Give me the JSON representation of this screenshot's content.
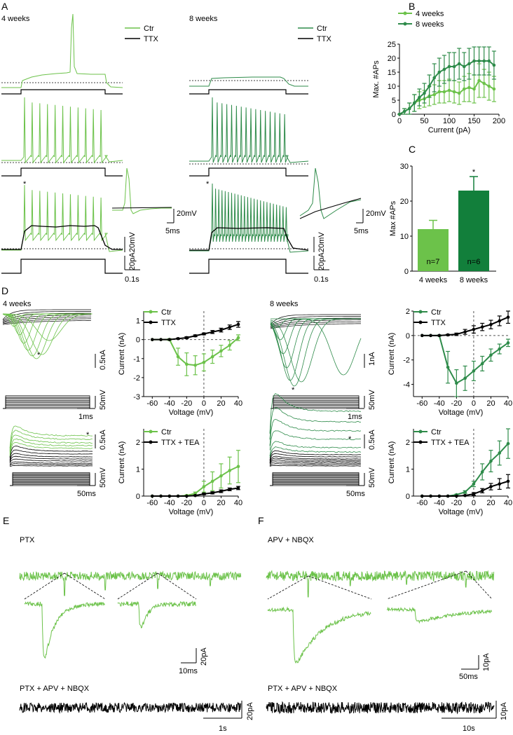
{
  "panel_labels": {
    "a": "A",
    "b": "B",
    "c": "C",
    "d": "D",
    "e": "E",
    "f": "F"
  },
  "colors": {
    "light_green": "#6cc24a",
    "dark_green": "#2e8b4a",
    "black": "#000000"
  },
  "panel_a": {
    "group_4w": "4 weeks",
    "group_8w": "8 weeks",
    "legend_ctr": "Ctr",
    "legend_ttx": "TTX",
    "star": "*",
    "scale_20mv_inset": "20mV",
    "scale_5ms": "5ms",
    "scale_20mv": "20mV",
    "scale_20pa": "20pA",
    "scale_01s": "0.1s"
  },
  "panel_d": {
    "group_4w": "4 weeks",
    "group_8w": "8 weeks",
    "legend_ctr": "Ctr",
    "legend_ttx": "TTX",
    "legend_ttx_tea": "TTX + TEA",
    "star": "*",
    "scale_05na": "0.5nA",
    "scale_1na": "1nA",
    "scale_50mv": "50mV",
    "scale_1ms": "1ms",
    "scale_50ms": "50ms"
  },
  "panel_e": {
    "cond_1": "PTX",
    "cond_2": "PTX + APV + NBQX",
    "scale_20pa": "20pA",
    "scale_10ms": "10ms",
    "scale_1s": "1s"
  },
  "panel_f": {
    "cond_1": "APV + NBQX",
    "cond_2": "PTX + APV + NBQX",
    "scale_10pa": "10pA",
    "scale_50ms": "50ms",
    "scale_10s": "10s"
  },
  "chart_data": [
    {
      "id": "B",
      "type": "line",
      "xlabel": "Current (pA)",
      "ylabel": "Max. #APs",
      "xlim": [
        0,
        200
      ],
      "ylim": [
        0,
        25
      ],
      "xticks": [
        "0",
        "50",
        "100",
        "150",
        "200"
      ],
      "yticks": [
        "0",
        "5",
        "10",
        "15",
        "20",
        "25"
      ],
      "series": [
        {
          "name": "4 weeks",
          "color": "#6cc24a",
          "x": [
            0,
            10,
            20,
            30,
            40,
            50,
            60,
            70,
            80,
            90,
            100,
            110,
            120,
            130,
            140,
            150,
            160,
            170,
            180,
            190
          ],
          "y": [
            0,
            1,
            2,
            4,
            5,
            5.5,
            6.5,
            7,
            8,
            8,
            8.5,
            8,
            7.5,
            9,
            9.5,
            9,
            12,
            11,
            10,
            9
          ],
          "err": [
            0,
            1,
            2,
            3,
            3,
            3,
            3.5,
            3.5,
            4,
            4,
            4,
            4,
            4,
            4.5,
            5,
            5,
            6,
            5,
            5,
            4.5
          ]
        },
        {
          "name": "8 weeks",
          "color": "#2e8b4a",
          "x": [
            0,
            10,
            20,
            30,
            40,
            50,
            60,
            70,
            80,
            90,
            100,
            110,
            120,
            130,
            140,
            150,
            160,
            170,
            180,
            190
          ],
          "y": [
            0,
            1,
            2,
            4,
            6,
            7.5,
            10,
            13,
            15,
            16,
            17,
            17,
            18,
            17,
            18,
            19,
            19,
            19,
            19,
            17.5
          ],
          "err": [
            0,
            1,
            2,
            3,
            3,
            3.5,
            4,
            5,
            5,
            5,
            5,
            5,
            5.5,
            5,
            5.5,
            5,
            5,
            5,
            5,
            5
          ]
        }
      ]
    },
    {
      "id": "C",
      "type": "bar",
      "ylabel": "Max #APs",
      "ylim": [
        0,
        30
      ],
      "yticks": [
        "0",
        "10",
        "20",
        "30"
      ],
      "categories": [
        "4 weeks",
        "8 weeks"
      ],
      "values": [
        12,
        23
      ],
      "err": [
        2.5,
        4
      ],
      "n_labels": [
        "n=7",
        "n=6"
      ],
      "sig": [
        "",
        "*"
      ],
      "colors": [
        "#6cc24a",
        "#127f3b"
      ]
    },
    {
      "id": "D1",
      "type": "line",
      "xlabel": "Voltage (mV)",
      "ylabel": "Current (nA)",
      "xlim": [
        -70,
        40
      ],
      "ylim": [
        -3,
        1.5
      ],
      "xticks": [
        "-60",
        "-40",
        "-20",
        "0",
        "20",
        "40"
      ],
      "yticks": [
        "-3",
        "-2",
        "-1",
        "0",
        "1"
      ],
      "series": [
        {
          "name": "Ctr",
          "color": "#6cc24a",
          "x": [
            -60,
            -50,
            -40,
            -30,
            -20,
            -10,
            0,
            10,
            20,
            30,
            40
          ],
          "y": [
            0,
            0,
            0,
            -0.9,
            -1.3,
            -1.35,
            -1.2,
            -0.9,
            -0.6,
            -0.3,
            0.1
          ],
          "err": [
            0,
            0,
            0.05,
            0.45,
            0.6,
            0.5,
            0.45,
            0.35,
            0.3,
            0.25,
            0.15
          ]
        },
        {
          "name": "TTX",
          "color": "#000000",
          "x": [
            -60,
            -50,
            -40,
            -30,
            -20,
            -10,
            0,
            10,
            20,
            30,
            40
          ],
          "y": [
            0,
            0,
            0,
            0.05,
            0.1,
            0.2,
            0.3,
            0.4,
            0.5,
            0.65,
            0.8
          ],
          "err": [
            0,
            0,
            0,
            0.03,
            0.05,
            0.05,
            0.05,
            0.08,
            0.1,
            0.12,
            0.15
          ]
        }
      ]
    },
    {
      "id": "D2",
      "type": "line",
      "xlabel": "Voltage (mV)",
      "ylabel": "Current (nA)",
      "xlim": [
        -70,
        40
      ],
      "ylim": [
        -5,
        2
      ],
      "xticks": [
        "-60",
        "-40",
        "-20",
        "0",
        "20",
        "40"
      ],
      "yticks": [
        "-4",
        "-2",
        "0",
        "2"
      ],
      "series": [
        {
          "name": "Ctr",
          "color": "#2e8b4a",
          "x": [
            -60,
            -50,
            -40,
            -30,
            -20,
            -10,
            0,
            10,
            20,
            30,
            40
          ],
          "y": [
            0,
            0,
            0,
            -2.6,
            -3.9,
            -3.5,
            -2.9,
            -2.3,
            -1.6,
            -1.1,
            -0.6
          ],
          "err": [
            0,
            0,
            0.05,
            1.3,
            1.1,
            1.0,
            0.8,
            0.6,
            0.5,
            0.4,
            0.3
          ]
        },
        {
          "name": "TTX",
          "color": "#000000",
          "x": [
            -60,
            -50,
            -40,
            -30,
            -20,
            -10,
            0,
            10,
            20,
            30,
            40
          ],
          "y": [
            0,
            0,
            0,
            0.05,
            0.1,
            0.3,
            0.5,
            0.7,
            0.9,
            1.2,
            1.5
          ],
          "err": [
            0,
            0,
            0,
            0.05,
            0.1,
            0.2,
            0.3,
            0.3,
            0.35,
            0.4,
            0.5
          ]
        }
      ]
    },
    {
      "id": "D3",
      "type": "line",
      "xlabel": "Voltage (mV)",
      "ylabel": "Current (nA)",
      "xlim": [
        -70,
        40
      ],
      "ylim": [
        0,
        2.5
      ],
      "xticks": [
        "-60",
        "-40",
        "-20",
        "0",
        "20",
        "40"
      ],
      "yticks": [
        "0",
        "1",
        "2"
      ],
      "series": [
        {
          "name": "Ctr",
          "color": "#6cc24a",
          "x": [
            -60,
            -50,
            -40,
            -30,
            -20,
            -10,
            0,
            10,
            20,
            30,
            40
          ],
          "y": [
            0,
            0,
            0,
            0,
            0.02,
            0.1,
            0.35,
            0.55,
            0.75,
            0.95,
            1.1
          ],
          "err": [
            0,
            0,
            0,
            0,
            0.02,
            0.05,
            0.2,
            0.35,
            0.45,
            0.5,
            0.6
          ]
        },
        {
          "name": "TTX + TEA",
          "color": "#000000",
          "x": [
            -60,
            -50,
            -40,
            -30,
            -20,
            -10,
            0,
            10,
            20,
            30,
            40
          ],
          "y": [
            0,
            0,
            0,
            0,
            0,
            0.02,
            0.08,
            0.12,
            0.18,
            0.25,
            0.3
          ],
          "err": [
            0,
            0,
            0,
            0,
            0,
            0.02,
            0.03,
            0.04,
            0.05,
            0.05,
            0.06
          ]
        }
      ]
    },
    {
      "id": "D4",
      "type": "line",
      "xlabel": "Voltage (mV)",
      "ylabel": "Current (nA)",
      "xlim": [
        -70,
        40
      ],
      "ylim": [
        0,
        2.5
      ],
      "xticks": [
        "-60",
        "-40",
        "-20",
        "0",
        "20",
        "40"
      ],
      "yticks": [
        "0",
        "1",
        "2"
      ],
      "series": [
        {
          "name": "Ctr",
          "color": "#2e8b4a",
          "x": [
            -60,
            -50,
            -40,
            -30,
            -20,
            -10,
            0,
            10,
            20,
            30,
            40
          ],
          "y": [
            0,
            0,
            0,
            0,
            0.05,
            0.15,
            0.45,
            0.9,
            1.3,
            1.6,
            1.95
          ],
          "err": [
            0,
            0,
            0,
            0,
            0.02,
            0.05,
            0.1,
            0.3,
            0.4,
            0.45,
            0.55
          ]
        },
        {
          "name": "TTX + TEA",
          "color": "#000000",
          "x": [
            -60,
            -50,
            -40,
            -30,
            -20,
            -10,
            0,
            10,
            20,
            30,
            40
          ],
          "y": [
            0,
            0,
            0,
            0,
            0,
            0.02,
            0.08,
            0.2,
            0.35,
            0.45,
            0.55
          ],
          "err": [
            0,
            0,
            0,
            0,
            0,
            0.02,
            0.05,
            0.08,
            0.12,
            0.2,
            0.25
          ]
        }
      ]
    }
  ]
}
